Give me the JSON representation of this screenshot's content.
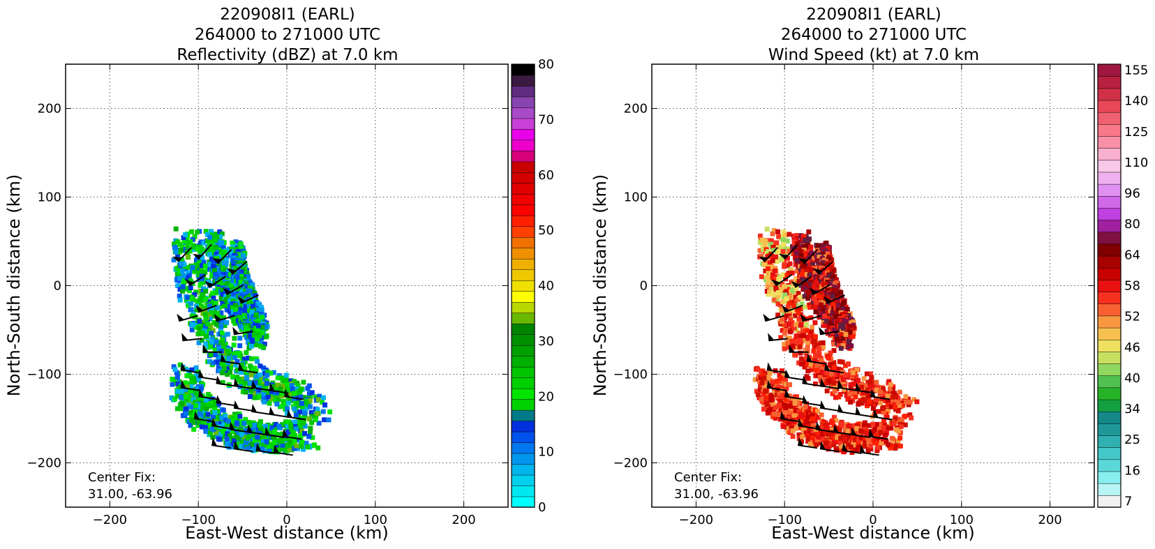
{
  "chart_data": [
    {
      "type": "heatmap",
      "title": [
        "220908I1 (EARL)",
        "264000 to 271000 UTC",
        "Reflectivity (dBZ) at 7.0 km"
      ],
      "xlabel": "East-West distance (km)",
      "ylabel": "North-South distance (km)",
      "xlim": [
        -250,
        250
      ],
      "ylim": [
        -250,
        250
      ],
      "xticks": [
        -200,
        -100,
        0,
        100,
        200
      ],
      "yticks": [
        -200,
        -100,
        0,
        100,
        200
      ],
      "grid": true,
      "center_fix": {
        "label": "Center Fix:",
        "value": "31.00, -63.96"
      },
      "colorbar": {
        "ticks": [
          0,
          10,
          20,
          30,
          40,
          50,
          60,
          70,
          80
        ],
        "levels": [
          0,
          2.5,
          5,
          7.5,
          10,
          12.5,
          15,
          17.5,
          20,
          22.5,
          25,
          27.5,
          30,
          32.5,
          35,
          37.5,
          40,
          42.5,
          45,
          47.5,
          50,
          52.5,
          55,
          57.5,
          60,
          62.5,
          65,
          67.5,
          70,
          72.5,
          75,
          77.5,
          80
        ],
        "colors": [
          "#00ffff",
          "#00e8f0",
          "#00cfee",
          "#00b4ee",
          "#0096ee",
          "#0077ee",
          "#0052ee",
          "#0030dd",
          "#007a88",
          "#00d200",
          "#00e400",
          "#00d000",
          "#00c400",
          "#00b000",
          "#00a000",
          "#009000",
          "#008400",
          "#6ab800",
          "#b8d800",
          "#ffff00",
          "#f0e000",
          "#f0c800",
          "#f0b000",
          "#f09000",
          "#f07000",
          "#ff4000",
          "#ff2000",
          "#ff0000",
          "#f00000",
          "#e00000",
          "#d40000",
          "#c80000",
          "#d8007a",
          "#ee00cc",
          "#e800e8",
          "#c840d8",
          "#a84ac8",
          "#8844b0",
          "#602c80",
          "#3a1a40",
          "#000000"
        ]
      },
      "series_note": "Reflectivity field with wind barbs"
    },
    {
      "type": "heatmap",
      "title": [
        "220908I1 (EARL)",
        "264000 to 271000 UTC",
        "Wind Speed (kt) at 7.0 km"
      ],
      "xlabel": "East-West distance (km)",
      "ylabel": "North-South distance (km)",
      "xlim": [
        -250,
        250
      ],
      "ylim": [
        -250,
        250
      ],
      "xticks": [
        -200,
        -100,
        0,
        100,
        200
      ],
      "yticks": [
        -200,
        -100,
        0,
        100,
        200
      ],
      "grid": true,
      "center_fix": {
        "label": "Center Fix:",
        "value": "31.00, -63.96"
      },
      "colorbar": {
        "ticks": [
          7,
          16,
          25,
          34,
          40,
          46,
          52,
          58,
          64,
          80,
          96,
          110,
          125,
          140,
          155
        ],
        "colors": [
          "#f0f0f0",
          "#b8f4f4",
          "#88eeee",
          "#5ad8d8",
          "#44c8c8",
          "#30b0b0",
          "#209898",
          "#158888",
          "#14a040",
          "#28b428",
          "#50c050",
          "#90d860",
          "#c8e060",
          "#f0e060",
          "#f8c050",
          "#f89840",
          "#f86030",
          "#f83020",
          "#e81010",
          "#c80000",
          "#a80000",
          "#800000",
          "#801040",
          "#a020a0",
          "#c040e0",
          "#d068e8",
          "#e090f0",
          "#f0b0f0",
          "#f8c8e8",
          "#f8b0d0",
          "#f890a8",
          "#f87888",
          "#f06070",
          "#e84858",
          "#d03048",
          "#b82040",
          "#a01840"
        ]
      },
      "series_note": "Wind speed field with wind barbs"
    }
  ]
}
